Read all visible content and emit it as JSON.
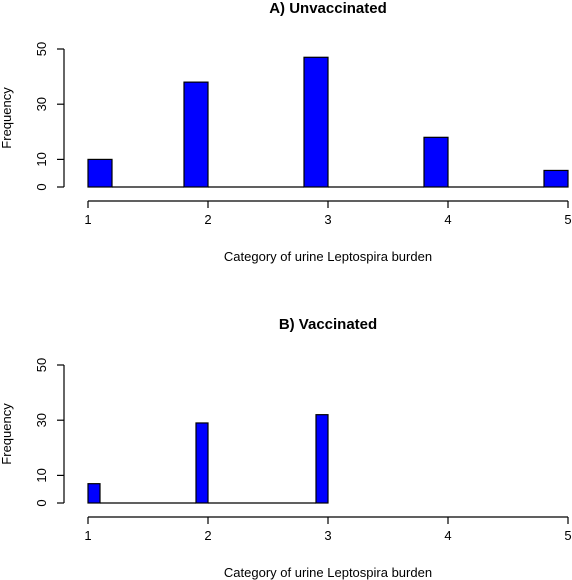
{
  "chart_data": [
    {
      "type": "bar",
      "title": "A) Unvaccinated",
      "xlabel": "Category of urine Leptospira burden",
      "ylabel": "Frequency",
      "xlim": [
        1,
        5
      ],
      "ylim": [
        0,
        50
      ],
      "xticks": [
        "1",
        "2",
        "3",
        "4",
        "5"
      ],
      "yticks": [
        "0",
        "10",
        "30",
        "50"
      ],
      "bar_color": "#0000ff",
      "bars": [
        {
          "x0": 1.0,
          "x1": 1.2,
          "value": 10
        },
        {
          "x0": 1.8,
          "x1": 2.0,
          "value": 38
        },
        {
          "x0": 2.8,
          "x1": 3.0,
          "value": 47
        },
        {
          "x0": 3.8,
          "x1": 4.0,
          "value": 18
        },
        {
          "x0": 4.8,
          "x1": 5.0,
          "value": 6
        }
      ]
    },
    {
      "type": "bar",
      "title": "B) Vaccinated",
      "xlabel": "Category of urine Leptospira burden",
      "ylabel": "Frequency",
      "xlim": [
        1,
        5
      ],
      "ylim": [
        0,
        50
      ],
      "xticks": [
        "1",
        "2",
        "3",
        "4",
        "5"
      ],
      "yticks": [
        "0",
        "10",
        "30",
        "50"
      ],
      "bar_color": "#0000ff",
      "bars": [
        {
          "x0": 1.0,
          "x1": 1.1,
          "value": 7
        },
        {
          "x0": 1.9,
          "x1": 2.0,
          "value": 29
        },
        {
          "x0": 2.9,
          "x1": 3.0,
          "value": 32
        }
      ]
    }
  ]
}
